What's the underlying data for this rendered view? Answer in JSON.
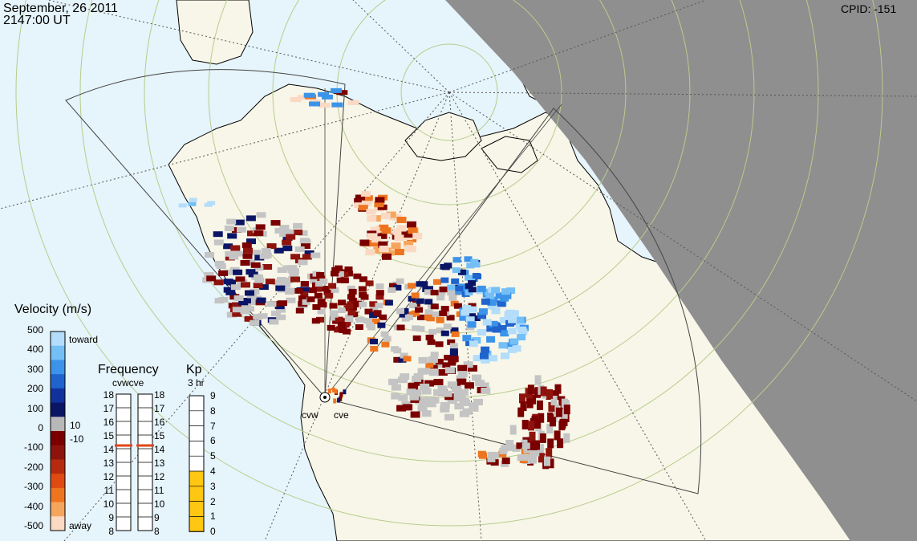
{
  "header": {
    "date": "September, 26 2011",
    "time": "2147:00 UT",
    "cpid": "CPID:  -151"
  },
  "velocity_scale": {
    "title": "Velocity (m/s)",
    "ticks": [
      "500",
      "400",
      "300",
      "200",
      "100",
      "0",
      "-100",
      "-200",
      "-300",
      "-400",
      "-500"
    ],
    "toward_label": "toward",
    "away_label": "away",
    "ground_pos_label": "10",
    "ground_neg_label": "-10",
    "colors": [
      "#fbd9c2",
      "#f6a55c",
      "#ee7520",
      "#de4a12",
      "#b62b10",
      "#8e130d",
      "#7a0000",
      "#b8b8b8",
      "#0a1566",
      "#11329c",
      "#1f64cc",
      "#3b94ea",
      "#73bff6",
      "#b3ddfa"
    ]
  },
  "frequency_panel": {
    "title": "Frequency",
    "radars": "cvwcve",
    "ticks": [
      "18",
      "17",
      "16",
      "15",
      "14",
      "13",
      "12",
      "11",
      "10",
      "9",
      "8"
    ],
    "cvw_value": 15,
    "cve_value": 15
  },
  "kp_panel": {
    "title": "Kp",
    "subtitle": "3 hr",
    "ticks": [
      "9",
      "8",
      "7",
      "6",
      "5",
      "4",
      "3",
      "2",
      "1",
      "0"
    ],
    "value": 4
  },
  "radars": [
    {
      "code": "cvw"
    },
    {
      "code": "cve"
    }
  ],
  "colors": {
    "ocean": "#e6f4fb",
    "land": "#f7f6e8",
    "night": "#8f8f8f",
    "latitude_circle": "#b9cc8c",
    "ground_scatter": "#c4c4c4"
  }
}
